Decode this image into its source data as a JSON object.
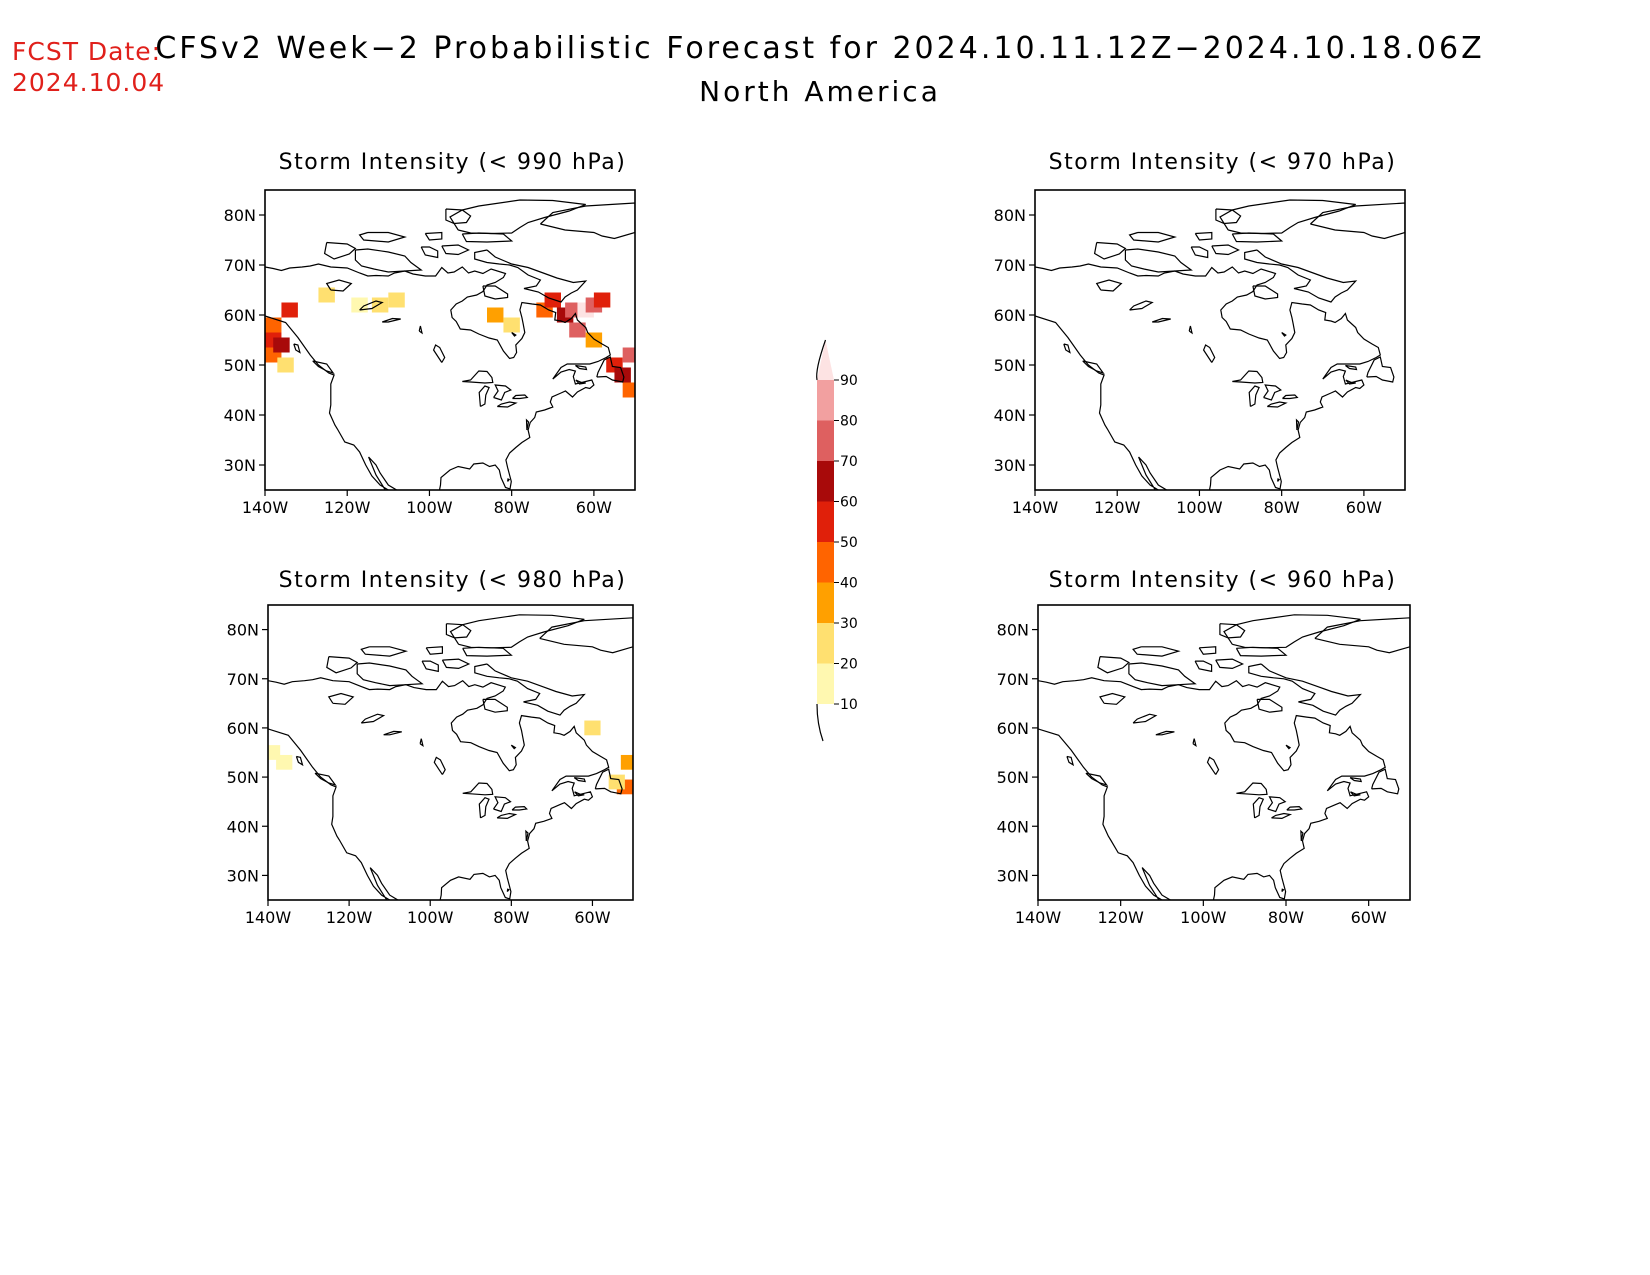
{
  "header": {
    "fcst_label": "FCST Date:",
    "fcst_date": "2024.10.04",
    "title": "CFSv2 Week−2 Probabilistic Forecast for 2024.10.11.12Z−2024.10.18.06Z",
    "region": "North America"
  },
  "axes": {
    "lat_ticks": [
      "80N",
      "70N",
      "60N",
      "50N",
      "40N",
      "30N"
    ],
    "lat_values": [
      80,
      70,
      60,
      50,
      40,
      30
    ],
    "lon_ticks": [
      "140W",
      "120W",
      "100W",
      "80W",
      "60W"
    ],
    "lon_values": [
      -140,
      -120,
      -100,
      -80,
      -60
    ],
    "lat_range": [
      25,
      85
    ],
    "lon_range": [
      -140,
      -50
    ]
  },
  "panels": [
    {
      "id": "p990",
      "title": "Storm Intensity (< 990 hPa)"
    },
    {
      "id": "p970",
      "title": "Storm Intensity (< 970 hPa)"
    },
    {
      "id": "p980",
      "title": "Storm Intensity (< 980 hPa)"
    },
    {
      "id": "p960",
      "title": "Storm Intensity (< 960 hPa)"
    }
  ],
  "colorbar": {
    "labels": [
      "90",
      "80",
      "70",
      "60",
      "50",
      "40",
      "30",
      "20",
      "10"
    ],
    "colors": [
      "#fde3e3",
      "#f2a0a0",
      "#de6060",
      "#a80a0a",
      "#e0200a",
      "#ff6400",
      "#ffa000",
      "#ffe070",
      "#fff8b0"
    ]
  },
  "chart_data": [
    {
      "type": "heatmap",
      "panel": "p990",
      "threshold_hpa": 990,
      "cells": [
        {
          "lon": -138,
          "lat": 58,
          "pct": 40
        },
        {
          "lon": -138,
          "lat": 55,
          "pct": 55
        },
        {
          "lon": -138,
          "lat": 52,
          "pct": 40
        },
        {
          "lon": -136,
          "lat": 54,
          "pct": 60
        },
        {
          "lon": -135,
          "lat": 50,
          "pct": 25
        },
        {
          "lon": -134,
          "lat": 61,
          "pct": 50
        },
        {
          "lon": -125,
          "lat": 64,
          "pct": 20
        },
        {
          "lon": -117,
          "lat": 62,
          "pct": 15
        },
        {
          "lon": -112,
          "lat": 62,
          "pct": 20
        },
        {
          "lon": -108,
          "lat": 63,
          "pct": 25
        },
        {
          "lon": -84,
          "lat": 60,
          "pct": 30
        },
        {
          "lon": -80,
          "lat": 58,
          "pct": 20
        },
        {
          "lon": -72,
          "lat": 61,
          "pct": 40
        },
        {
          "lon": -70,
          "lat": 63,
          "pct": 55
        },
        {
          "lon": -67,
          "lat": 60,
          "pct": 60
        },
        {
          "lon": -65,
          "lat": 61,
          "pct": 75
        },
        {
          "lon": -64,
          "lat": 57,
          "pct": 70
        },
        {
          "lon": -62,
          "lat": 61,
          "pct": 90
        },
        {
          "lon": -60,
          "lat": 62,
          "pct": 70
        },
        {
          "lon": -58,
          "lat": 63,
          "pct": 50
        },
        {
          "lon": -60,
          "lat": 55,
          "pct": 35
        },
        {
          "lon": -55,
          "lat": 50,
          "pct": 50
        },
        {
          "lon": -53,
          "lat": 48,
          "pct": 65
        },
        {
          "lon": -51,
          "lat": 52,
          "pct": 75
        },
        {
          "lon": -51,
          "lat": 45,
          "pct": 45
        }
      ]
    },
    {
      "type": "heatmap",
      "panel": "p970",
      "threshold_hpa": 970,
      "cells": []
    },
    {
      "type": "heatmap",
      "panel": "p980",
      "threshold_hpa": 980,
      "cells": [
        {
          "lon": -139,
          "lat": 55,
          "pct": 10
        },
        {
          "lon": -136,
          "lat": 53,
          "pct": 15
        },
        {
          "lon": -60,
          "lat": 60,
          "pct": 20
        },
        {
          "lon": -51,
          "lat": 53,
          "pct": 35
        },
        {
          "lon": -52,
          "lat": 48,
          "pct": 40
        },
        {
          "lon": -54,
          "lat": 49,
          "pct": 25
        }
      ]
    },
    {
      "type": "heatmap",
      "panel": "p960",
      "threshold_hpa": 960,
      "cells": []
    }
  ]
}
